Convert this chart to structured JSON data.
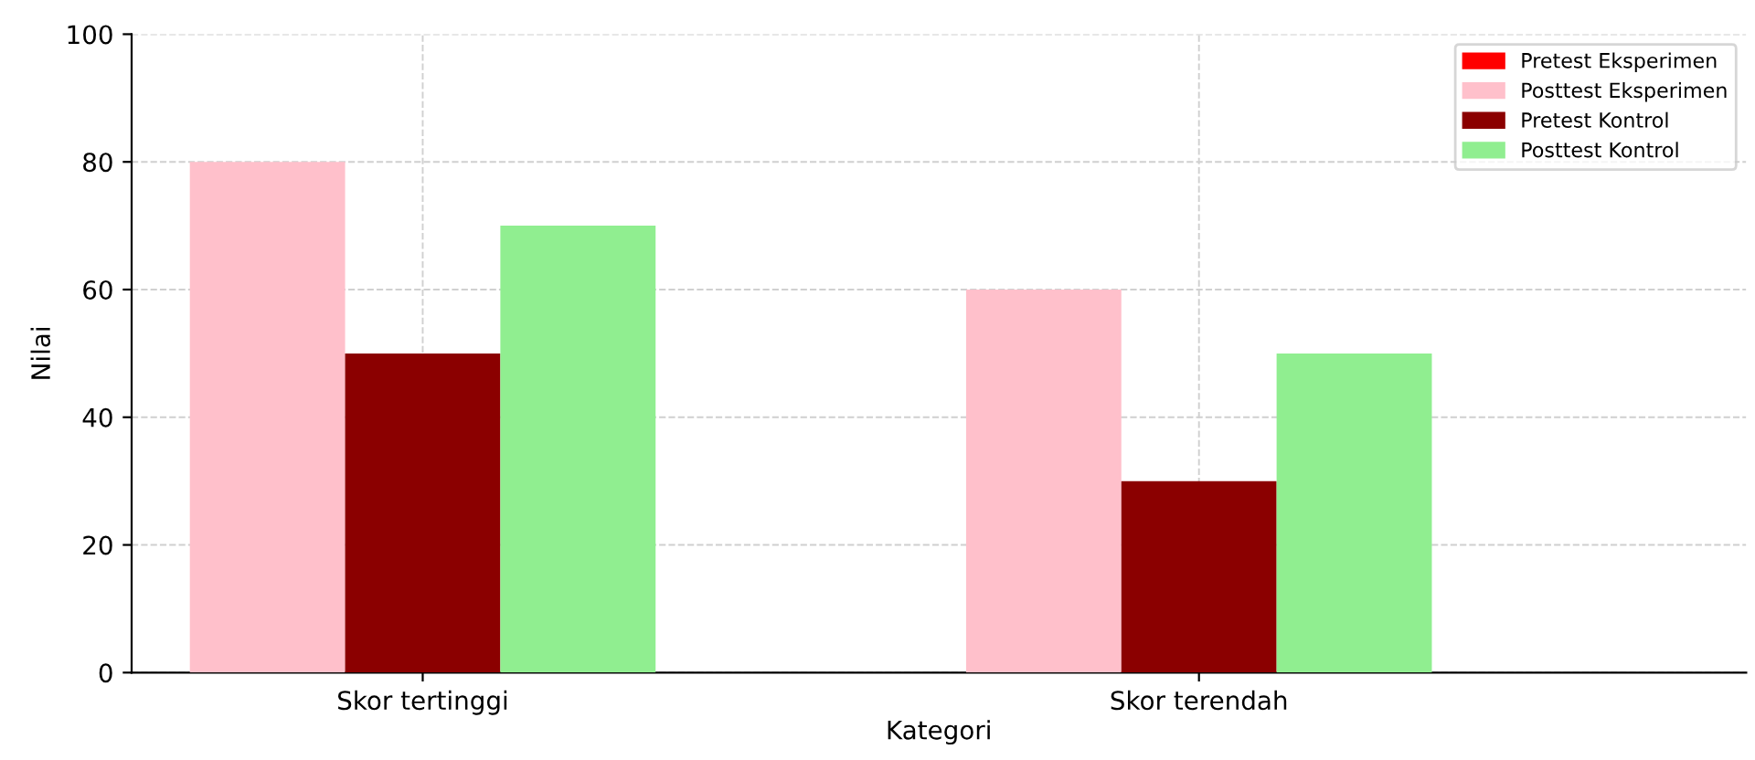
{
  "chart_data": {
    "type": "bar",
    "xlabel": "Kategori",
    "ylabel": "Nilai",
    "categories": [
      "Skor tertinggi",
      "Skor terendah"
    ],
    "series": [
      {
        "name": "Pretest Eksperimen",
        "color": "#ff0000",
        "values": [
          null,
          null
        ]
      },
      {
        "name": "Posttest Eksperimen",
        "color": "#ffc0cb",
        "values": [
          80,
          60
        ]
      },
      {
        "name": "Pretest Kontrol",
        "color": "#8b0000",
        "values": [
          50,
          30
        ]
      },
      {
        "name": "Posttest Kontrol",
        "color": "#90ee90",
        "values": [
          70,
          50
        ]
      }
    ],
    "ylim": [
      0,
      100
    ],
    "yticks": [
      0,
      20,
      40,
      60,
      80,
      100
    ],
    "grid": true,
    "legend": "top right"
  }
}
